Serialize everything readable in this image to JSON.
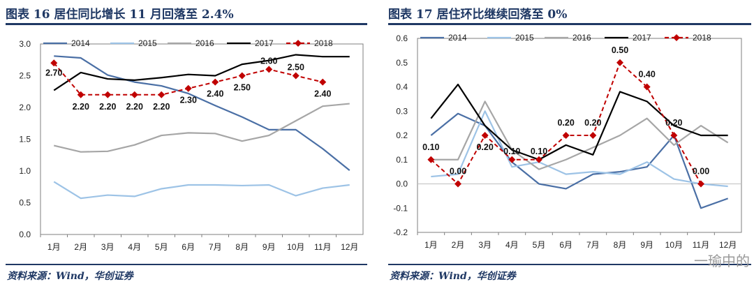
{
  "figures": [
    {
      "title": "图表 16   居住同比增长 11 月回落至 2.4%",
      "source": "资料来源：Wind，华创证券"
    },
    {
      "title": "图表 17   居住环比继续回落至 0%",
      "source": "资料来源：Wind，华创证券"
    }
  ],
  "watermark": "一瑜中的",
  "chart_data": [
    {
      "type": "line",
      "title": "居住同比增长 11 月回落至 2.4%",
      "categories": [
        "1月",
        "2月",
        "3月",
        "4月",
        "5月",
        "6月",
        "7月",
        "8月",
        "9月",
        "10月",
        "11月",
        "12月"
      ],
      "ylim": [
        0,
        3
      ],
      "yticks": [
        "0.0",
        "0.5",
        "1.0",
        "1.5",
        "2.0",
        "2.5",
        "3.0"
      ],
      "legend_position": "top",
      "series": [
        {
          "name": "2014",
          "color": "#4a6fa5",
          "values": [
            2.81,
            2.78,
            2.51,
            2.4,
            2.34,
            2.22,
            2.03,
            1.85,
            1.65,
            1.65,
            1.35,
            1.01
          ]
        },
        {
          "name": "2015",
          "color": "#9dc3e6",
          "values": [
            0.83,
            0.57,
            0.62,
            0.6,
            0.72,
            0.78,
            0.78,
            0.77,
            0.78,
            0.61,
            0.73,
            0.78
          ]
        },
        {
          "name": "2016",
          "color": "#a6a6a6",
          "values": [
            1.4,
            1.3,
            1.31,
            1.41,
            1.56,
            1.6,
            1.59,
            1.47,
            1.56,
            1.79,
            2.02,
            2.06
          ]
        },
        {
          "name": "2017",
          "color": "#000000",
          "values": [
            2.27,
            2.55,
            2.45,
            2.43,
            2.47,
            2.52,
            2.5,
            2.68,
            2.74,
            2.83,
            2.8,
            2.8
          ]
        },
        {
          "name": "2018",
          "color": "#c00000",
          "dashed": true,
          "marker": "diamond",
          "values": [
            2.7,
            2.2,
            2.2,
            2.2,
            2.2,
            2.3,
            2.4,
            2.5,
            2.6,
            2.5,
            2.4,
            null
          ]
        }
      ],
      "data_labels": [
        "2.70",
        "2.20",
        "2.20",
        "2.20",
        "2.20",
        "2.30",
        "2.40",
        "2.50",
        "2.60",
        "2.50",
        "2.40"
      ]
    },
    {
      "type": "line",
      "title": "居住环比继续回落至 0%",
      "categories": [
        "1月",
        "2月",
        "3月",
        "4月",
        "5月",
        "6月",
        "7月",
        "8月",
        "9月",
        "10月",
        "11月",
        "12月"
      ],
      "ylim": [
        -0.2,
        0.6
      ],
      "yticks": [
        "-0.2",
        "-0.1",
        "0.0",
        "0.1",
        "0.2",
        "0.3",
        "0.4",
        "0.5",
        "0.6"
      ],
      "legend_position": "top",
      "series": [
        {
          "name": "2014",
          "color": "#4a6fa5",
          "values": [
            0.2,
            0.29,
            0.24,
            0.09,
            0.0,
            -0.02,
            0.04,
            0.05,
            0.07,
            0.2,
            -0.1,
            -0.06
          ]
        },
        {
          "name": "2015",
          "color": "#9dc3e6",
          "values": [
            0.03,
            0.04,
            0.3,
            0.07,
            0.09,
            0.04,
            0.05,
            0.04,
            0.09,
            0.02,
            0.0,
            -0.01
          ]
        },
        {
          "name": "2016",
          "color": "#a6a6a6",
          "values": [
            0.1,
            0.1,
            0.34,
            0.14,
            0.06,
            0.1,
            0.15,
            0.2,
            0.27,
            0.16,
            0.24,
            0.17
          ]
        },
        {
          "name": "2017",
          "color": "#000000",
          "values": [
            0.27,
            0.41,
            0.24,
            0.14,
            0.1,
            0.16,
            0.12,
            0.38,
            0.34,
            0.24,
            0.2,
            0.2
          ]
        },
        {
          "name": "2018",
          "color": "#c00000",
          "dashed": true,
          "marker": "diamond",
          "values": [
            0.1,
            0.0,
            0.2,
            0.1,
            0.1,
            0.2,
            0.2,
            0.5,
            0.4,
            0.2,
            0.0,
            null
          ]
        }
      ],
      "data_labels": [
        "0.10",
        "0.00",
        "0.20",
        "0.10",
        "0.10",
        "0.20",
        "0.20",
        "0.50",
        "0.40",
        "0.20",
        "0.00"
      ]
    }
  ]
}
